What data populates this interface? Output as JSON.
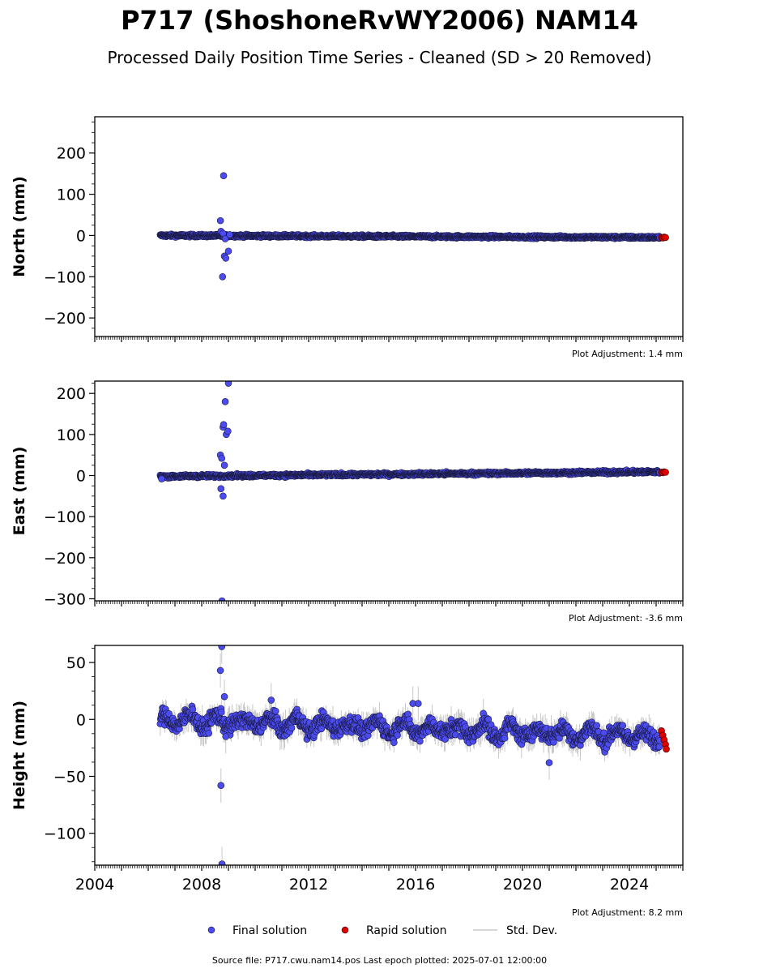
{
  "chart_data": {
    "type": "scatter",
    "title": "P717 (ShoshoneRvWY2006) NAM14",
    "subtitle": "Processed Daily Position Time Series - Cleaned (SD > 20 Removed)",
    "xlim": [
      2004,
      2026
    ],
    "xticks": [
      2004,
      2008,
      2012,
      2016,
      2020,
      2024
    ],
    "panels": [
      {
        "ylabel": "North (mm)",
        "ylim": [
          -245,
          288
        ],
        "yticks": [
          -200,
          -100,
          0,
          100,
          200
        ],
        "adjustment": "Plot Adjustment: 1.4 mm",
        "baseline": {
          "start": 0,
          "rate": -0.25
        },
        "noise": 2.2,
        "outliers": [
          [
            2008.7,
            36
          ],
          [
            2008.82,
            145
          ],
          [
            2008.78,
            -100
          ],
          [
            2008.85,
            -50
          ],
          [
            2008.9,
            -55
          ],
          [
            2009.0,
            -38
          ],
          [
            2008.72,
            10
          ],
          [
            2008.8,
            5
          ],
          [
            2008.88,
            -8
          ],
          [
            2009.05,
            2
          ]
        ],
        "rapid": [
          [
            2025.2,
            -5
          ],
          [
            2025.25,
            -6
          ],
          [
            2025.3,
            -4
          ],
          [
            2025.35,
            -5
          ]
        ]
      },
      {
        "ylabel": "East (mm)",
        "ylim": [
          -305,
          230
        ],
        "yticks": [
          -300,
          -200,
          -100,
          0,
          100,
          200
        ],
        "adjustment": "Plot Adjustment: -3.6 mm",
        "baseline": {
          "start": -2,
          "rate": 0.6
        },
        "noise": 2.5,
        "outliers": [
          [
            2008.7,
            50
          ],
          [
            2008.75,
            42
          ],
          [
            2008.8,
            118
          ],
          [
            2008.82,
            124
          ],
          [
            2008.88,
            180
          ],
          [
            2008.92,
            100
          ],
          [
            2008.98,
            108
          ],
          [
            2009.0,
            225
          ],
          [
            2008.72,
            -32
          ],
          [
            2008.8,
            -50
          ],
          [
            2008.76,
            -305
          ],
          [
            2008.85,
            25
          ],
          [
            2006.5,
            -8
          ]
        ],
        "rapid": [
          [
            2025.2,
            8
          ],
          [
            2025.25,
            7
          ],
          [
            2025.3,
            9
          ],
          [
            2025.35,
            8
          ]
        ]
      },
      {
        "ylabel": "Height (mm)",
        "ylim": [
          -128,
          65
        ],
        "yticks": [
          -100,
          -50,
          0,
          50
        ],
        "adjustment": "Plot Adjustment: 8.2 mm",
        "baseline": {
          "start": 0,
          "rate": -0.8
        },
        "noise": 5,
        "seasonal": 7,
        "outliers": [
          [
            2008.7,
            43
          ],
          [
            2008.75,
            64
          ],
          [
            2008.72,
            -58
          ],
          [
            2008.76,
            -127
          ],
          [
            2008.85,
            20
          ],
          [
            2010.6,
            17
          ],
          [
            2015.9,
            14
          ],
          [
            2016.1,
            14
          ],
          [
            2021.0,
            -38
          ],
          [
            2008.9,
            -15
          ]
        ],
        "rapid": [
          [
            2025.2,
            -10
          ],
          [
            2025.25,
            -14
          ],
          [
            2025.3,
            -18
          ],
          [
            2025.35,
            -22
          ],
          [
            2025.38,
            -26
          ]
        ]
      }
    ],
    "legend": [
      "Final solution",
      "Rapid solution",
      "Std. Dev."
    ],
    "colors": {
      "final": "#4b4bf0",
      "rapid": "#e00000",
      "stddev": "#c8c8c8"
    },
    "source": "Source file: P717.cwu.nam14.pos  Last epoch plotted: 2025-07-01 12:00:00"
  }
}
